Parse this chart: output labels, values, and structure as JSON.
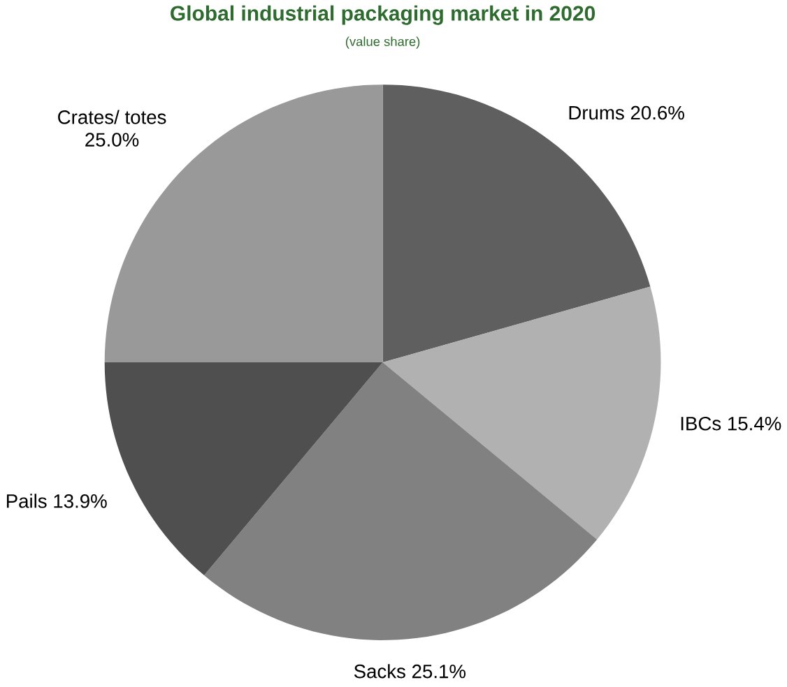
{
  "chart_data": {
    "type": "pie",
    "title": "Global industrial packaging market in 2020",
    "subtitle": "(value share)",
    "categories": [
      "Drums",
      "IBCs",
      "Sacks",
      "Pails",
      "Crates/ totes"
    ],
    "values": [
      20.6,
      15.4,
      25.1,
      13.9,
      25.0
    ],
    "value_labels": [
      "20.6%",
      "15.4%",
      "25.1%",
      "13.9%",
      "25.0%"
    ],
    "colors": [
      "#5f5f5f",
      "#b1b1b1",
      "#818181",
      "#4f4f4f",
      "#999999"
    ]
  }
}
